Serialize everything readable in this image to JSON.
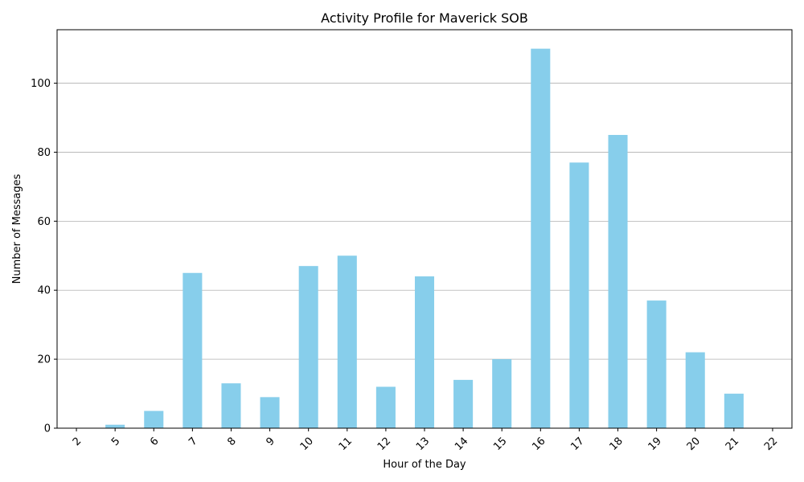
{
  "chart_data": {
    "type": "bar",
    "title": "Activity Profile for Maverick SOB",
    "xlabel": "Hour of the Day",
    "ylabel": "Number of Messages",
    "categories": [
      "2",
      "5",
      "6",
      "7",
      "8",
      "9",
      "10",
      "11",
      "12",
      "13",
      "14",
      "15",
      "16",
      "17",
      "18",
      "19",
      "20",
      "21",
      "22"
    ],
    "values": [
      0,
      1,
      5,
      45,
      13,
      9,
      47,
      50,
      12,
      44,
      14,
      20,
      110,
      77,
      85,
      37,
      22,
      10,
      0
    ],
    "ylim": [
      0,
      115.5
    ],
    "yticks": [
      0,
      20,
      40,
      60,
      80,
      100
    ],
    "grid": "y",
    "bar_color": "#87ceeb",
    "x_tick_rotation": 45
  }
}
